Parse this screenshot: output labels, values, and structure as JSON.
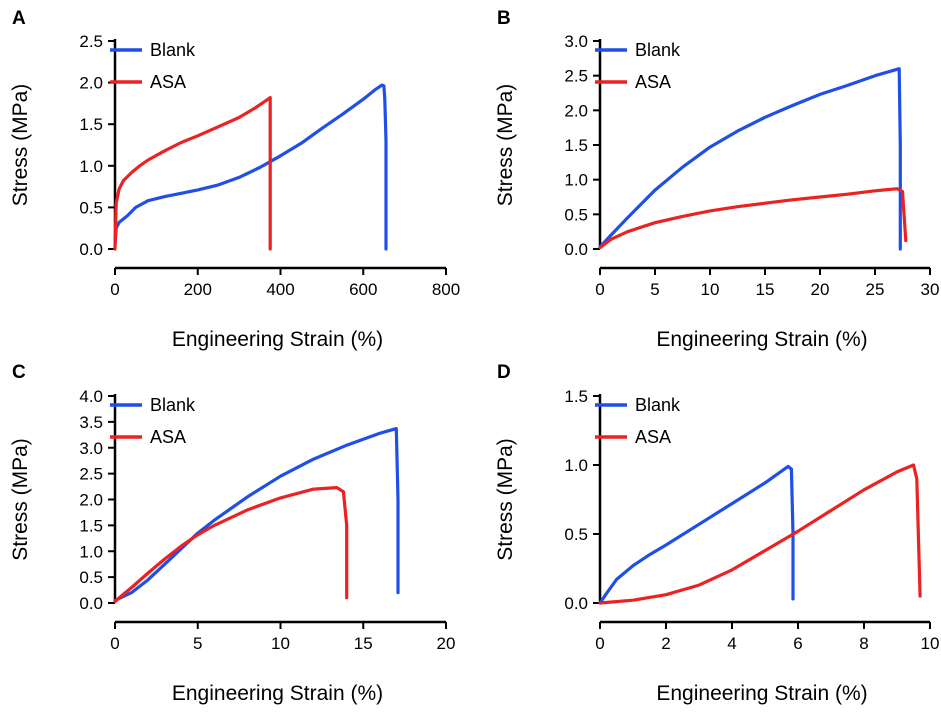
{
  "colors": {
    "blank": "#1f4fe6",
    "asa": "#ec2222",
    "axis": "#000000"
  },
  "chart_data": [
    {
      "panel": "A",
      "type": "line",
      "xlabel": "Engineering Strain (%)",
      "ylabel": "Stress (MPa)",
      "xlim": [
        0,
        800
      ],
      "ylim": [
        0,
        2.5
      ],
      "xticks": [
        0,
        200,
        400,
        600,
        800
      ],
      "xtick_labels": [
        "0",
        "200",
        "400",
        "600",
        "800"
      ],
      "yticks": [
        0,
        0.5,
        1,
        1.5,
        2,
        2.5
      ],
      "ytick_labels": [
        "0.0",
        "0.5",
        "1.0",
        "1.5",
        "2.0",
        "2.5"
      ],
      "legend": "top-left",
      "series": [
        {
          "name": "Blank",
          "color_key": "blank",
          "x": [
            0,
            3,
            10,
            30,
            50,
            80,
            120,
            160,
            200,
            250,
            300,
            350,
            400,
            450,
            500,
            550,
            600,
            630,
            645,
            650,
            652,
            655,
            655,
            655
          ],
          "y": [
            0.05,
            0.25,
            0.32,
            0.4,
            0.5,
            0.58,
            0.63,
            0.67,
            0.71,
            0.77,
            0.86,
            0.98,
            1.12,
            1.27,
            1.45,
            1.62,
            1.8,
            1.92,
            1.97,
            1.96,
            1.8,
            1.3,
            0.5,
            0.0
          ]
        },
        {
          "name": "ASA",
          "color_key": "asa",
          "x": [
            0,
            3,
            10,
            20,
            40,
            60,
            80,
            120,
            160,
            200,
            250,
            300,
            340,
            370,
            375,
            375,
            375
          ],
          "y": [
            0.0,
            0.55,
            0.72,
            0.82,
            0.92,
            1.0,
            1.07,
            1.18,
            1.28,
            1.36,
            1.47,
            1.58,
            1.7,
            1.8,
            1.82,
            0.9,
            0.0
          ]
        }
      ]
    },
    {
      "panel": "B",
      "type": "line",
      "xlabel": "Engineering Strain (%)",
      "ylabel": "Stress (MPa)",
      "xlim": [
        0,
        30
      ],
      "ylim": [
        0,
        3
      ],
      "xticks": [
        0,
        5,
        10,
        15,
        20,
        25,
        30
      ],
      "xtick_labels": [
        "0",
        "5",
        "10",
        "15",
        "20",
        "25",
        "30"
      ],
      "yticks": [
        0,
        0.5,
        1,
        1.5,
        2,
        2.5,
        3
      ],
      "ytick_labels": [
        "0.0",
        "0.5",
        "1.0",
        "1.5",
        "2.0",
        "2.5",
        "3.0"
      ],
      "legend": "top-left",
      "series": [
        {
          "name": "Blank",
          "color_key": "blank",
          "x": [
            0,
            1,
            2.5,
            5,
            7.5,
            10,
            12.5,
            15,
            17.5,
            20,
            22.5,
            25,
            27.2,
            27.3,
            27.3
          ],
          "y": [
            0.03,
            0.2,
            0.45,
            0.85,
            1.18,
            1.47,
            1.7,
            1.9,
            2.07,
            2.23,
            2.36,
            2.5,
            2.6,
            1.5,
            0.0
          ]
        },
        {
          "name": "ASA",
          "color_key": "asa",
          "x": [
            0,
            1,
            2.5,
            5,
            7.5,
            10,
            12.5,
            15,
            17.5,
            20,
            22.5,
            25,
            27,
            27.5,
            27.8
          ],
          "y": [
            0.02,
            0.14,
            0.25,
            0.38,
            0.47,
            0.55,
            0.61,
            0.66,
            0.71,
            0.75,
            0.79,
            0.84,
            0.87,
            0.83,
            0.12
          ]
        }
      ]
    },
    {
      "panel": "C",
      "type": "line",
      "xlabel": "Engineering Strain (%)",
      "ylabel": "Stress (MPa)",
      "xlim": [
        0,
        20
      ],
      "ylim": [
        0,
        4
      ],
      "xticks": [
        0,
        5,
        10,
        15,
        20
      ],
      "xtick_labels": [
        "0",
        "5",
        "10",
        "15",
        "20"
      ],
      "yticks": [
        0,
        0.5,
        1,
        1.5,
        2,
        2.5,
        3,
        3.5,
        4
      ],
      "ytick_labels": [
        "0.0",
        "0.5",
        "1.0",
        "1.5",
        "2.0",
        "2.5",
        "3.0",
        "3.5",
        "4.0"
      ],
      "legend": "top-left",
      "series": [
        {
          "name": "Blank",
          "color_key": "blank",
          "x": [
            0,
            1,
            2,
            3,
            4,
            5,
            6,
            8,
            10,
            12,
            14,
            16,
            17,
            17.1,
            17.1
          ],
          "y": [
            0.05,
            0.2,
            0.45,
            0.75,
            1.05,
            1.35,
            1.6,
            2.05,
            2.45,
            2.78,
            3.05,
            3.28,
            3.37,
            2.0,
            0.2
          ]
        },
        {
          "name": "ASA",
          "color_key": "asa",
          "x": [
            0,
            1,
            2,
            3,
            4,
            5,
            6,
            8,
            10,
            12,
            13.4,
            13.8,
            14,
            14
          ],
          "y": [
            0.03,
            0.3,
            0.58,
            0.85,
            1.1,
            1.32,
            1.5,
            1.8,
            2.03,
            2.2,
            2.23,
            2.15,
            1.5,
            0.1
          ]
        }
      ]
    },
    {
      "panel": "D",
      "type": "line",
      "xlabel": "Engineering Strain (%)",
      "ylabel": "Stress (MPa)",
      "xlim": [
        0,
        10
      ],
      "ylim": [
        0,
        1.5
      ],
      "xticks": [
        0,
        2,
        4,
        6,
        8,
        10
      ],
      "xtick_labels": [
        "0",
        "2",
        "4",
        "6",
        "8",
        "10"
      ],
      "yticks": [
        0,
        0.5,
        1,
        1.5
      ],
      "ytick_labels": [
        "0.0",
        "0.5",
        "1.0",
        "1.5"
      ],
      "legend": "top-left",
      "series": [
        {
          "name": "Blank",
          "color_key": "blank",
          "x": [
            0,
            0.2,
            0.5,
            1,
            1.5,
            2,
            3,
            4,
            5,
            5.7,
            5.8,
            5.85,
            5.85
          ],
          "y": [
            0.0,
            0.07,
            0.17,
            0.27,
            0.35,
            0.42,
            0.57,
            0.72,
            0.87,
            0.99,
            0.97,
            0.5,
            0.03
          ]
        },
        {
          "name": "ASA",
          "color_key": "asa",
          "x": [
            0,
            1,
            2,
            3,
            4,
            5,
            6,
            7,
            8,
            9,
            9.5,
            9.6,
            9.7
          ],
          "y": [
            0.0,
            0.02,
            0.06,
            0.13,
            0.24,
            0.38,
            0.52,
            0.67,
            0.82,
            0.95,
            1.0,
            0.9,
            0.05
          ]
        }
      ]
    }
  ]
}
